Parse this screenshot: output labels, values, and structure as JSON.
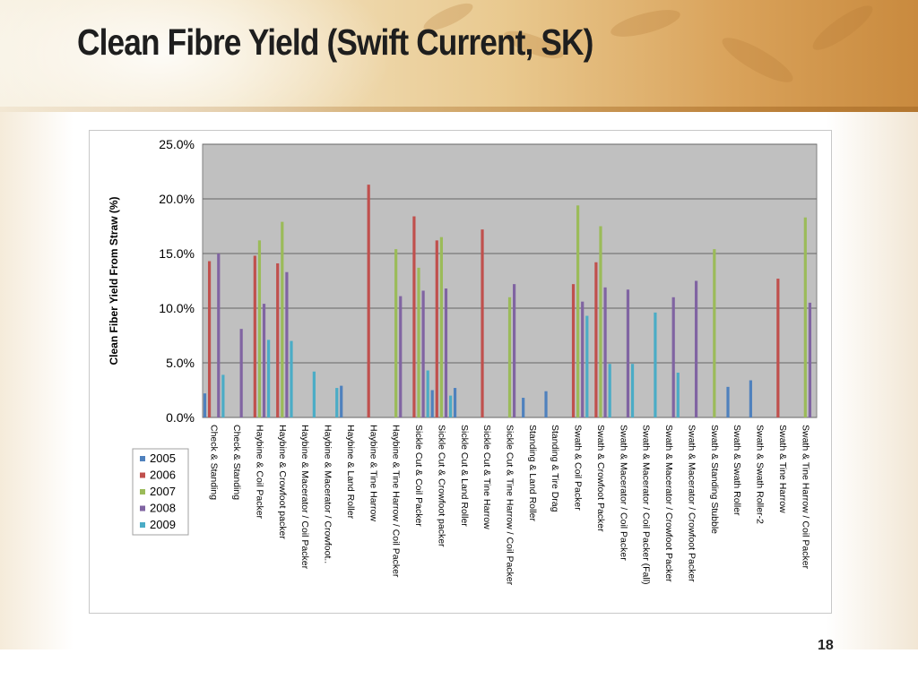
{
  "slide": {
    "title": "Clean Fibre Yield (Swift Current, SK)",
    "page_number": "18"
  },
  "chart_data": {
    "type": "bar",
    "ylabel": "Clean Fiber Yield From Straw (%)",
    "ylim": [
      0,
      25
    ],
    "yticks": [
      "0.0%",
      "5.0%",
      "10.0%",
      "15.0%",
      "20.0%",
      "25.0%"
    ],
    "grid": true,
    "legend": "bottom-left",
    "plot_background": "#c0c0c0",
    "categories": [
      "Check & Standing",
      "Check & Standing",
      "Haybine & Coil Packer",
      "Haybine & Crowfoot packer",
      "Haybine & Macerator / Coil Packer",
      "Haybine & Macerator / Crowfoot..",
      "Haybine & Land Roller",
      "Haybine & Tine Harrow",
      "Haybine & Tine Harrow / Coil Packer",
      "Sickle Cut & Coil Packer",
      "Sickle Cut & Crowfoot packer",
      "Sickle Cut & Land Roller",
      "Sickle Cut & Tine Harrow",
      "Sickle Cut & Tine Harrow / Coil Packer",
      "Standing & Land Roller",
      "Standing & Tire Drag",
      "Swath & Coil Packer",
      "Swath & Crowfoot Packer",
      "Swath & Macerator / Coil Packer",
      "Swath & Macerator / Coil Packer (Fall)",
      "Swath & Macerator / Crowfoot Packer",
      "Swath & Macerator / Crowfoot Packer",
      "Swath & Standing Stubble",
      "Swath & Swath Roller",
      "Swath & Swath Roller-2",
      "Swath & Tine Harrow",
      "Swath & Tine Harrow / Coil Packer"
    ],
    "series": [
      {
        "name": "2005",
        "color": "#4f81bd",
        "values": [
          2.2,
          null,
          null,
          null,
          null,
          null,
          2.9,
          null,
          null,
          null,
          2.5,
          2.7,
          null,
          null,
          1.8,
          2.4,
          null,
          null,
          null,
          null,
          null,
          null,
          null,
          2.8,
          3.4,
          null,
          null
        ]
      },
      {
        "name": "2006",
        "color": "#c0504d",
        "values": [
          14.3,
          null,
          14.8,
          14.1,
          null,
          null,
          null,
          21.3,
          null,
          18.4,
          16.2,
          null,
          17.2,
          null,
          null,
          null,
          12.2,
          14.2,
          null,
          null,
          null,
          null,
          null,
          null,
          null,
          12.7,
          null
        ]
      },
      {
        "name": "2007",
        "color": "#9bbb59",
        "values": [
          null,
          null,
          16.2,
          17.9,
          null,
          null,
          null,
          null,
          15.4,
          13.7,
          16.5,
          null,
          null,
          11.0,
          null,
          null,
          19.4,
          17.5,
          null,
          null,
          null,
          null,
          15.4,
          null,
          null,
          null,
          18.3
        ]
      },
      {
        "name": "2008",
        "color": "#8064a2",
        "values": [
          15.0,
          8.1,
          10.4,
          13.3,
          null,
          null,
          null,
          null,
          11.1,
          11.6,
          11.8,
          null,
          null,
          12.2,
          null,
          null,
          10.6,
          11.9,
          11.7,
          null,
          11.0,
          12.5,
          null,
          null,
          null,
          null,
          10.5
        ]
      },
      {
        "name": "2009",
        "color": "#4bacc6",
        "values": [
          3.9,
          null,
          7.1,
          7.0,
          4.2,
          2.7,
          null,
          null,
          null,
          4.3,
          2.0,
          null,
          null,
          null,
          null,
          null,
          9.3,
          4.9,
          4.9,
          9.6,
          4.1,
          null,
          null,
          null,
          null,
          null,
          null
        ]
      }
    ]
  }
}
